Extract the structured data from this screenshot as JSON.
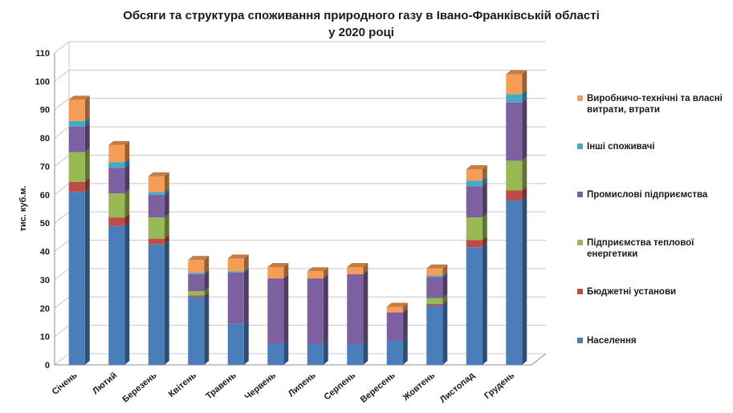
{
  "chart_data": {
    "type": "bar",
    "stacked": true,
    "style": "3d",
    "title": [
      "Обсяги та структура споживання природного газу в Івано-Франківській області",
      "у 2020 році"
    ],
    "ylabel": "тис. куб.м.",
    "ylim": [
      0,
      110
    ],
    "yticks": [
      0,
      10,
      20,
      30,
      40,
      50,
      60,
      70,
      80,
      90,
      100,
      110
    ],
    "grid": true,
    "legend_position": "right",
    "categories": [
      "Січень",
      "Лютий",
      "Березень",
      "Квітень",
      "Травень",
      "Червень",
      "Липень",
      "Серпень",
      "Вересень",
      "Жовтень",
      "Листопад",
      "Грудень"
    ],
    "series": [
      {
        "name": "Населення",
        "color": "#4a7ebb",
        "values": [
          61,
          49,
          42.5,
          24,
          14.5,
          7.5,
          7.5,
          7.5,
          8.5,
          21,
          41.5,
          58
        ]
      },
      {
        "name": "Бюджетні установи",
        "color": "#be4b48",
        "values": [
          3.5,
          3,
          2,
          0.5,
          0,
          0,
          0,
          0,
          0,
          0.5,
          2.5,
          3.5
        ]
      },
      {
        "name": "Підприємства теплової енергетики",
        "color": "#98b954",
        "values": [
          10.5,
          8.5,
          7.5,
          1.5,
          0,
          0,
          0,
          0,
          0,
          2,
          8,
          10.5
        ]
      },
      {
        "name": "Промислові підприємства",
        "color": "#7d60a0",
        "values": [
          9,
          9,
          8,
          6,
          18,
          23,
          23,
          24.5,
          10,
          7.5,
          11,
          20.5
        ]
      },
      {
        "name": "Інші споживачі",
        "color": "#46aac5",
        "values": [
          2,
          2,
          1,
          0.5,
          0.5,
          0,
          0,
          0,
          0,
          0.5,
          2,
          3
        ]
      },
      {
        "name": "Виробничо-технічні та власні витрати, втрати",
        "color": "#f59d56",
        "values": [
          7.5,
          6,
          5.5,
          4.5,
          4.5,
          4,
          2.5,
          2.5,
          2,
          2.5,
          4,
          7
        ]
      }
    ]
  }
}
